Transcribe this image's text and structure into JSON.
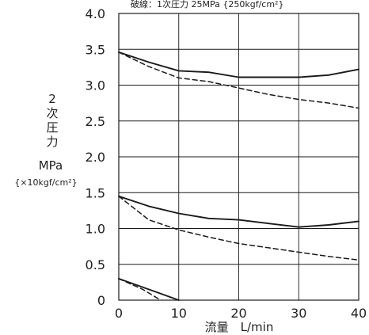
{
  "chart_data": {
    "type": "line",
    "annotation": "破線：1次圧力 25MPa {250kgf/cm²}",
    "xlabel": "流量　L/min",
    "ylabel_lines": [
      "2",
      "次",
      "圧",
      "力"
    ],
    "yunit": "MPa",
    "yunit_alt": "{×10kgf/cm²}",
    "xlim": [
      0,
      40
    ],
    "ylim": [
      0,
      4.0
    ],
    "x_ticks": [
      "0",
      "10",
      "20",
      "30",
      "40"
    ],
    "y_ticks": [
      "0",
      "0.5",
      "1.0",
      "1.5",
      "2.0",
      "2.5",
      "3.0",
      "3.5",
      "4.0"
    ],
    "grid": true,
    "series": [
      {
        "style": "solid",
        "points": [
          [
            0,
            3.46
          ],
          [
            5,
            3.32
          ],
          [
            10,
            3.2
          ],
          [
            15,
            3.18
          ],
          [
            20,
            3.11
          ],
          [
            25,
            3.11
          ],
          [
            30,
            3.11
          ],
          [
            35,
            3.14
          ],
          [
            40,
            3.22
          ]
        ]
      },
      {
        "style": "dashed",
        "points": [
          [
            0,
            3.46
          ],
          [
            5,
            3.26
          ],
          [
            10,
            3.1
          ],
          [
            15,
            3.05
          ],
          [
            20,
            2.96
          ],
          [
            25,
            2.87
          ],
          [
            30,
            2.8
          ],
          [
            35,
            2.75
          ],
          [
            40,
            2.68
          ]
        ]
      },
      {
        "style": "solid",
        "points": [
          [
            0,
            1.45
          ],
          [
            5,
            1.31
          ],
          [
            10,
            1.21
          ],
          [
            15,
            1.14
          ],
          [
            20,
            1.12
          ],
          [
            25,
            1.07
          ],
          [
            30,
            1.02
          ],
          [
            35,
            1.05
          ],
          [
            40,
            1.1
          ]
        ]
      },
      {
        "style": "dashed",
        "points": [
          [
            0,
            1.45
          ],
          [
            5,
            1.12
          ],
          [
            10,
            0.98
          ],
          [
            15,
            0.88
          ],
          [
            20,
            0.79
          ],
          [
            25,
            0.73
          ],
          [
            30,
            0.67
          ],
          [
            35,
            0.61
          ],
          [
            40,
            0.56
          ]
        ]
      },
      {
        "style": "solid",
        "points": [
          [
            0,
            0.3
          ],
          [
            5,
            0.15
          ],
          [
            10,
            0.0
          ]
        ]
      },
      {
        "style": "dashed",
        "points": [
          [
            0,
            0.3
          ],
          [
            4,
            0.15
          ],
          [
            7,
            0.0
          ]
        ]
      }
    ],
    "colors": {
      "line": "#1a1a1a",
      "grid": "#1a1a1a"
    }
  }
}
